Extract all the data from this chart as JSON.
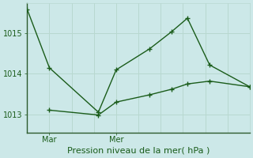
{
  "title": "Pression niveau de la mer( hPa )",
  "bg_color": "#cce8e8",
  "grid_color": "#b8d8d0",
  "line_color": "#1a5c1a",
  "spine_color": "#2d5a2d",
  "xtick_labels": [
    "Mar",
    "Mer"
  ],
  "xtick_positions": [
    1,
    4
  ],
  "ylim": [
    1012.55,
    1015.75
  ],
  "yticks": [
    1013,
    1014,
    1015
  ],
  "xlim": [
    0,
    10
  ],
  "series1_x": [
    0.0,
    1.0,
    3.2,
    4.0,
    5.5,
    6.5,
    7.2,
    8.2,
    10.0
  ],
  "series1_y": [
    1015.6,
    1014.15,
    1013.05,
    1014.1,
    1014.62,
    1015.05,
    1015.38,
    1014.22,
    1013.68
  ],
  "series2_x": [
    1.0,
    3.2,
    4.0,
    5.5,
    6.5,
    7.2,
    8.2,
    10.0
  ],
  "series2_y": [
    1013.1,
    1012.98,
    1013.3,
    1013.48,
    1013.62,
    1013.75,
    1013.82,
    1013.68
  ],
  "marker": "+",
  "markersize": 5,
  "linewidth": 1.0,
  "title_fontsize": 8,
  "tick_fontsize": 7
}
